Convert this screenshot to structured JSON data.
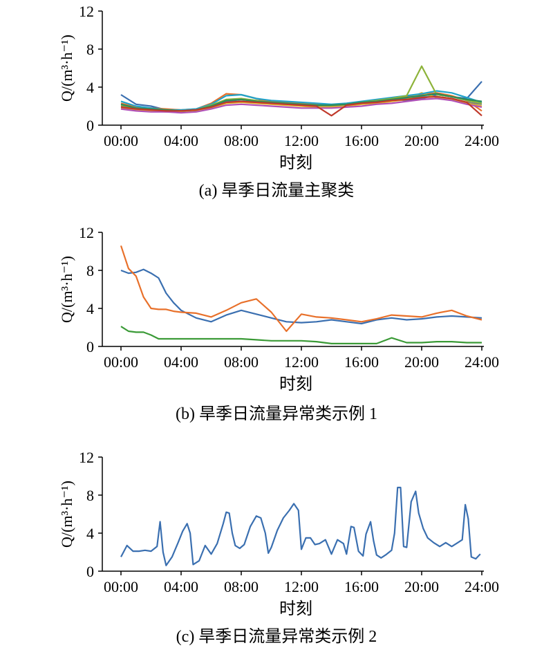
{
  "chart_data": [
    {
      "type": "line",
      "caption": "(a) 旱季日流量主聚类",
      "xlabel": "时刻",
      "ylabel": "Q/(m³·h⁻¹)",
      "x_ticks": [
        "00:00",
        "04:00",
        "08:00",
        "12:00",
        "16:00",
        "20:00",
        "24:00"
      ],
      "y_ticks": [
        "0",
        "4",
        "8",
        "12"
      ],
      "xlim": [
        0,
        24
      ],
      "ylim": [
        0,
        12
      ],
      "x": [
        0,
        1,
        2,
        3,
        4,
        5,
        6,
        7,
        8,
        9,
        10,
        11,
        12,
        13,
        14,
        15,
        16,
        17,
        18,
        19,
        20,
        21,
        22,
        23,
        24
      ],
      "series": [
        {
          "color": "#3a6fb0",
          "values": [
            3.2,
            2.2,
            2.0,
            1.6,
            1.5,
            1.6,
            2.0,
            2.5,
            2.7,
            2.6,
            2.5,
            2.4,
            2.3,
            2.2,
            2.1,
            2.2,
            2.4,
            2.6,
            2.7,
            2.6,
            2.8,
            3.2,
            3.0,
            2.8,
            4.6
          ]
        },
        {
          "color": "#e8702a",
          "values": [
            2.3,
            1.9,
            1.8,
            1.7,
            1.6,
            1.7,
            2.3,
            3.3,
            3.2,
            2.8,
            2.5,
            2.4,
            2.3,
            2.2,
            2.1,
            2.2,
            2.4,
            2.6,
            2.8,
            3.0,
            3.2,
            3.4,
            3.1,
            2.6,
            1.5
          ]
        },
        {
          "color": "#7e7e7e",
          "values": [
            2.0,
            1.7,
            1.6,
            1.5,
            1.4,
            1.5,
            1.9,
            2.4,
            2.5,
            2.4,
            2.3,
            2.2,
            2.1,
            2.0,
            2.0,
            2.1,
            2.3,
            2.4,
            2.6,
            2.8,
            3.0,
            3.0,
            2.8,
            2.4,
            2.2
          ]
        },
        {
          "color": "#e4b02a",
          "values": [
            1.8,
            1.6,
            1.5,
            1.4,
            1.4,
            1.5,
            1.8,
            2.3,
            2.4,
            2.3,
            2.2,
            2.1,
            2.0,
            1.9,
            1.9,
            2.0,
            2.2,
            2.3,
            2.5,
            2.7,
            3.4,
            2.9,
            2.7,
            2.3,
            2.0
          ]
        },
        {
          "color": "#1fa3c9",
          "values": [
            2.5,
            2.0,
            1.8,
            1.6,
            1.6,
            1.7,
            2.2,
            3.1,
            3.2,
            2.8,
            2.6,
            2.5,
            2.4,
            2.3,
            2.2,
            2.3,
            2.5,
            2.7,
            2.9,
            3.1,
            3.3,
            3.6,
            3.4,
            2.9,
            2.4
          ]
        },
        {
          "color": "#8db33a",
          "values": [
            2.1,
            1.8,
            1.7,
            1.6,
            1.5,
            1.6,
            2.1,
            2.7,
            2.8,
            2.6,
            2.4,
            2.3,
            2.2,
            2.1,
            2.1,
            2.2,
            2.4,
            2.6,
            2.8,
            3.1,
            6.2,
            3.2,
            3.0,
            2.6,
            2.3
          ]
        },
        {
          "color": "#b04fb7",
          "values": [
            1.7,
            1.5,
            1.4,
            1.4,
            1.3,
            1.4,
            1.7,
            2.1,
            2.2,
            2.1,
            2.0,
            1.9,
            1.8,
            1.8,
            1.8,
            1.9,
            2.0,
            2.2,
            2.3,
            2.5,
            2.7,
            2.8,
            2.6,
            2.2,
            1.9
          ]
        },
        {
          "color": "#2e8b57",
          "values": [
            2.2,
            1.8,
            1.7,
            1.6,
            1.5,
            1.6,
            2.0,
            2.6,
            2.7,
            2.5,
            2.4,
            2.3,
            2.2,
            2.1,
            2.1,
            2.2,
            2.4,
            2.5,
            2.7,
            2.9,
            3.1,
            3.3,
            3.0,
            2.7,
            2.5
          ]
        },
        {
          "color": "#c0392b",
          "values": [
            1.9,
            1.7,
            1.6,
            1.5,
            1.5,
            1.6,
            1.9,
            2.4,
            2.5,
            2.4,
            2.3,
            2.2,
            2.1,
            2.0,
            1.0,
            2.1,
            2.3,
            2.4,
            2.6,
            2.7,
            2.9,
            3.0,
            2.8,
            2.4,
            1.0
          ]
        }
      ]
    },
    {
      "type": "line",
      "caption": "(b) 旱季日流量异常类示例 1",
      "xlabel": "时刻",
      "ylabel": "Q/(m³·h⁻¹)",
      "x_ticks": [
        "00:00",
        "04:00",
        "08:00",
        "12:00",
        "16:00",
        "20:00",
        "24:00"
      ],
      "y_ticks": [
        "0",
        "4",
        "8",
        "12"
      ],
      "xlim": [
        0,
        24
      ],
      "ylim": [
        0,
        12
      ],
      "x": [
        0,
        0.5,
        1,
        1.5,
        2,
        2.5,
        3,
        3.5,
        4,
        5,
        6,
        7,
        8,
        9,
        10,
        11,
        12,
        13,
        14,
        15,
        16,
        17,
        18,
        19,
        20,
        21,
        22,
        23,
        24
      ],
      "series": [
        {
          "color": "#3a6fb0",
          "values": [
            8.0,
            7.7,
            7.8,
            8.1,
            7.7,
            7.2,
            5.6,
            4.6,
            3.8,
            3.0,
            2.6,
            3.3,
            3.8,
            3.4,
            3.0,
            2.6,
            2.5,
            2.6,
            2.8,
            2.6,
            2.4,
            2.8,
            3.0,
            2.8,
            2.9,
            3.1,
            3.2,
            3.1,
            3.0
          ]
        },
        {
          "color": "#e8702a",
          "values": [
            10.6,
            8.2,
            7.4,
            5.2,
            4.0,
            3.9,
            3.9,
            3.7,
            3.6,
            3.5,
            3.1,
            3.8,
            4.6,
            5.0,
            3.6,
            1.6,
            3.4,
            3.1,
            3.0,
            2.8,
            2.6,
            2.9,
            3.3,
            3.2,
            3.1,
            3.5,
            3.8,
            3.2,
            2.8
          ]
        },
        {
          "color": "#3a9a36",
          "values": [
            2.1,
            1.6,
            1.5,
            1.5,
            1.2,
            0.8,
            0.8,
            0.8,
            0.8,
            0.8,
            0.8,
            0.8,
            0.8,
            0.7,
            0.6,
            0.6,
            0.6,
            0.5,
            0.3,
            0.3,
            0.3,
            0.3,
            0.9,
            0.4,
            0.4,
            0.5,
            0.5,
            0.4,
            0.4
          ]
        }
      ]
    },
    {
      "type": "line",
      "caption": "(c) 旱季日流量异常类示例 2",
      "xlabel": "时刻",
      "ylabel": "Q/(m³·h⁻¹)",
      "x_ticks": [
        "00:00",
        "04:00",
        "08:00",
        "12:00",
        "16:00",
        "20:00",
        "24:00"
      ],
      "y_ticks": [
        "0",
        "4",
        "8",
        "12"
      ],
      "xlim": [
        0,
        24
      ],
      "ylim": [
        0,
        12
      ],
      "x": [
        0,
        0.4,
        0.8,
        1.2,
        1.6,
        2.0,
        2.4,
        2.6,
        2.8,
        3.0,
        3.4,
        3.8,
        4.1,
        4.4,
        4.6,
        4.8,
        5.2,
        5.6,
        6.0,
        6.4,
        6.8,
        7.0,
        7.2,
        7.4,
        7.6,
        7.9,
        8.2,
        8.6,
        9.0,
        9.3,
        9.6,
        9.8,
        10.0,
        10.4,
        10.8,
        11.2,
        11.5,
        11.8,
        12.0,
        12.3,
        12.6,
        12.9,
        13.2,
        13.6,
        14.0,
        14.4,
        14.8,
        15.0,
        15.3,
        15.5,
        15.8,
        16.1,
        16.3,
        16.6,
        16.8,
        17.0,
        17.3,
        17.6,
        18.0,
        18.2,
        18.4,
        18.6,
        18.8,
        19.0,
        19.3,
        19.6,
        19.8,
        20.1,
        20.4,
        20.8,
        21.2,
        21.6,
        22.0,
        22.4,
        22.7,
        22.9,
        23.1,
        23.3,
        23.6,
        23.9
      ],
      "series": [
        {
          "color": "#3a6fb0",
          "values": [
            1.5,
            2.7,
            2.1,
            2.1,
            2.2,
            2.1,
            2.6,
            5.2,
            2.0,
            0.6,
            1.5,
            3.0,
            4.2,
            5.0,
            4.0,
            0.7,
            1.1,
            2.7,
            1.8,
            2.9,
            5.0,
            6.2,
            6.1,
            4.0,
            2.7,
            2.4,
            2.8,
            4.7,
            5.8,
            5.6,
            4.0,
            1.9,
            2.5,
            4.3,
            5.6,
            6.4,
            7.1,
            6.4,
            2.3,
            3.5,
            3.5,
            2.8,
            2.9,
            3.3,
            1.8,
            3.3,
            2.9,
            1.8,
            4.7,
            4.6,
            2.1,
            1.6,
            3.9,
            5.2,
            3.2,
            1.7,
            1.4,
            1.7,
            2.2,
            4.0,
            8.8,
            8.8,
            2.6,
            2.5,
            7.3,
            8.4,
            6.1,
            4.5,
            3.5,
            3.0,
            2.6,
            3.0,
            2.6,
            3.0,
            3.3,
            7.0,
            5.5,
            1.5,
            1.3,
            1.8
          ]
        }
      ]
    }
  ]
}
